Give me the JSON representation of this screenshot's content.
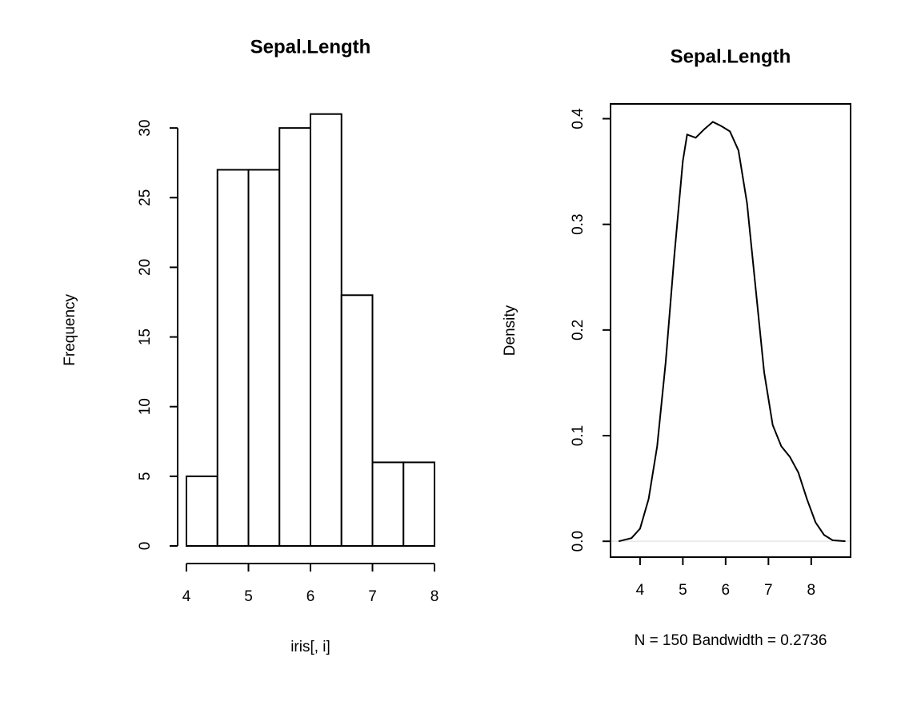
{
  "chart_data": [
    {
      "type": "histogram",
      "title": "Sepal.Length",
      "x_label": "iris[, i]",
      "y_label": "Frequency",
      "bins": [
        4,
        4.5,
        5,
        5.5,
        6,
        6.5,
        7,
        7.5,
        8
      ],
      "counts": [
        5,
        27,
        27,
        30,
        31,
        18,
        6,
        6
      ],
      "color": "#ffffff",
      "xlim": [
        4,
        8
      ],
      "ylim": [
        0,
        31
      ],
      "xticks": [
        4,
        5,
        6,
        7,
        8
      ],
      "yticks": [
        0,
        5,
        10,
        15,
        20,
        25,
        30
      ],
      "box": false
    },
    {
      "type": "line",
      "title": "Sepal.Length",
      "x_label": "N = 150   Bandwidth = 0.2736",
      "y_label": "Density",
      "x": [
        3.5,
        3.8,
        4.0,
        4.2,
        4.4,
        4.6,
        4.8,
        5.0,
        5.1,
        5.3,
        5.5,
        5.7,
        5.9,
        6.1,
        6.3,
        6.5,
        6.7,
        6.9,
        7.1,
        7.3,
        7.5,
        7.7,
        7.9,
        8.1,
        8.3,
        8.5,
        8.8
      ],
      "values": [
        0.0,
        0.003,
        0.012,
        0.04,
        0.09,
        0.17,
        0.27,
        0.36,
        0.385,
        0.382,
        0.39,
        0.397,
        0.393,
        0.388,
        0.37,
        0.32,
        0.24,
        0.16,
        0.11,
        0.09,
        0.08,
        0.065,
        0.04,
        0.018,
        0.006,
        0.001,
        0.0
      ],
      "color": "#000000",
      "xlim": [
        3.31,
        8.92
      ],
      "ylim": [
        -0.015,
        0.414
      ],
      "xticks": [
        4,
        5,
        6,
        7,
        8
      ],
      "yticks": [
        {
          "value": 0,
          "label": "0.0"
        },
        0.1,
        0.2,
        0.3,
        0.4
      ],
      "box": true,
      "zero_line": true
    }
  ]
}
